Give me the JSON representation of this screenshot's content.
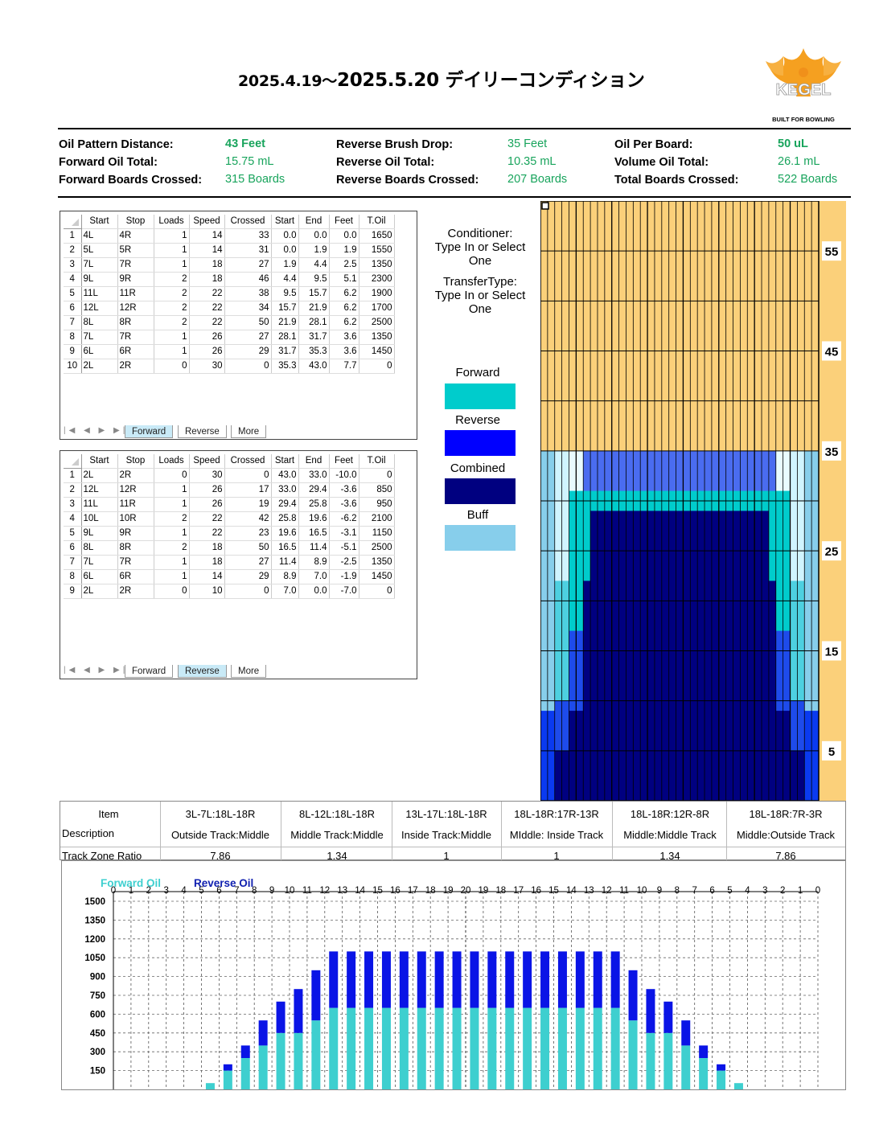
{
  "title": {
    "start": "2025.4.19",
    "sep": "～",
    "rest": "2025.5.20 デイリーコンディション"
  },
  "logo": {
    "text": "KEGEL",
    "tagline": "BUILT FOR BOWLING"
  },
  "info": {
    "col1": [
      {
        "label": "Oil Pattern Distance:",
        "value": "43 Feet",
        "bold": true
      },
      {
        "label": "Forward Oil Total:",
        "value": "15.75 mL",
        "bold": false
      },
      {
        "label": "Forward Boards Crossed:",
        "value": "315 Boards",
        "bold": false
      }
    ],
    "col2": [
      {
        "label": "Reverse Brush Drop:",
        "value": "35 Feet",
        "bold": false
      },
      {
        "label": "Reverse Oil Total:",
        "value": "10.35 mL",
        "bold": false
      },
      {
        "label": "Reverse Boards Crossed:",
        "value": "207 Boards",
        "bold": false
      }
    ],
    "col3": [
      {
        "label": "Oil Per Board:",
        "value": "50 uL",
        "bold": true
      },
      {
        "label": "Volume Oil Total:",
        "value": "26.1 mL",
        "bold": false
      },
      {
        "label": "Total Boards Crossed:",
        "value": "522 Boards",
        "bold": false
      }
    ]
  },
  "headers": [
    "Start",
    "Stop",
    "Loads",
    "Speed",
    "Crossed",
    "Start",
    "End",
    "Feet",
    "T.Oil"
  ],
  "forward": [
    [
      "1",
      "4L",
      "4R",
      "1",
      "14",
      "33",
      "0.0",
      "0.0",
      "0.0",
      "1650"
    ],
    [
      "2",
      "5L",
      "5R",
      "1",
      "14",
      "31",
      "0.0",
      "1.9",
      "1.9",
      "1550"
    ],
    [
      "3",
      "7L",
      "7R",
      "1",
      "18",
      "27",
      "1.9",
      "4.4",
      "2.5",
      "1350"
    ],
    [
      "4",
      "9L",
      "9R",
      "2",
      "18",
      "46",
      "4.4",
      "9.5",
      "5.1",
      "2300"
    ],
    [
      "5",
      "11L",
      "11R",
      "2",
      "22",
      "38",
      "9.5",
      "15.7",
      "6.2",
      "1900"
    ],
    [
      "6",
      "12L",
      "12R",
      "2",
      "22",
      "34",
      "15.7",
      "21.9",
      "6.2",
      "1700"
    ],
    [
      "7",
      "8L",
      "8R",
      "2",
      "22",
      "50",
      "21.9",
      "28.1",
      "6.2",
      "2500"
    ],
    [
      "8",
      "7L",
      "7R",
      "1",
      "26",
      "27",
      "28.1",
      "31.7",
      "3.6",
      "1350"
    ],
    [
      "9",
      "6L",
      "6R",
      "1",
      "26",
      "29",
      "31.7",
      "35.3",
      "3.6",
      "1450"
    ],
    [
      "10",
      "2L",
      "2R",
      "0",
      "30",
      "0",
      "35.3",
      "43.0",
      "7.7",
      "0"
    ]
  ],
  "reverse": [
    [
      "1",
      "2L",
      "2R",
      "0",
      "30",
      "0",
      "43.0",
      "33.0",
      "-10.0",
      "0"
    ],
    [
      "2",
      "12L",
      "12R",
      "1",
      "26",
      "17",
      "33.0",
      "29.4",
      "-3.6",
      "850"
    ],
    [
      "3",
      "11L",
      "11R",
      "1",
      "26",
      "19",
      "29.4",
      "25.8",
      "-3.6",
      "950"
    ],
    [
      "4",
      "10L",
      "10R",
      "2",
      "22",
      "42",
      "25.8",
      "19.6",
      "-6.2",
      "2100"
    ],
    [
      "5",
      "9L",
      "9R",
      "1",
      "22",
      "23",
      "19.6",
      "16.5",
      "-3.1",
      "1150"
    ],
    [
      "6",
      "8L",
      "8R",
      "2",
      "18",
      "50",
      "16.5",
      "11.4",
      "-5.1",
      "2500"
    ],
    [
      "7",
      "7L",
      "7R",
      "1",
      "18",
      "27",
      "11.4",
      "8.9",
      "-2.5",
      "1350"
    ],
    [
      "8",
      "6L",
      "6R",
      "1",
      "14",
      "29",
      "8.9",
      "7.0",
      "-1.9",
      "1450"
    ],
    [
      "9",
      "2L",
      "2R",
      "0",
      "10",
      "0",
      "7.0",
      "0.0",
      "-7.0",
      "0"
    ]
  ],
  "tabs": [
    "Forward",
    "Reverse",
    "More"
  ],
  "conditioner": {
    "line1": "Conditioner:",
    "line2": "Type In or Select",
    "line3": "One"
  },
  "transfer": {
    "line1": "TransferType:",
    "line2": "Type In or Select",
    "line3": "One"
  },
  "legend": [
    {
      "label": "Forward",
      "color": "#00CCCC"
    },
    {
      "label": "Reverse",
      "color": "#0000FF"
    },
    {
      "label": "Combined",
      "color": "#000080"
    },
    {
      "label": "Buff",
      "color": "#87CEEB"
    }
  ],
  "lane_markers": [
    "55",
    "45",
    "35",
    "25",
    "15",
    "5"
  ],
  "zones": {
    "item_label": "Item",
    "desc_label": "Description",
    "ratio_label": "Track Zone Ratio",
    "cols": [
      {
        "item": "3L-7L:18L-18R",
        "desc": "Outside Track:Middle",
        "ratio": "7.86"
      },
      {
        "item": "8L-12L:18L-18R",
        "desc": "Middle Track:Middle",
        "ratio": "1.34"
      },
      {
        "item": "13L-17L:18L-18R",
        "desc": "Inside Track:Middle",
        "ratio": "1"
      },
      {
        "item": "18L-18R:17R-13R",
        "desc": "MIddle: Inside Track",
        "ratio": "1"
      },
      {
        "item": "18L-18R:12R-8R",
        "desc": "Middle:Middle Track",
        "ratio": "1.34"
      },
      {
        "item": "18L-18R:7R-3R",
        "desc": "Middle:Outside Track",
        "ratio": "7.86"
      }
    ]
  },
  "chart_data": {
    "type": "bar",
    "legend": [
      "Forward Oil",
      "Reverse Oil"
    ],
    "colors": {
      "forward": "#3ECFCF",
      "reverse": "#0A14E6"
    },
    "categories": [
      "0",
      "1",
      "2",
      "3",
      "4",
      "5",
      "6",
      "7",
      "8",
      "9",
      "10",
      "11",
      "12",
      "13",
      "14",
      "15",
      "16",
      "17",
      "18",
      "19",
      "20",
      "19",
      "18",
      "17",
      "16",
      "15",
      "14",
      "13",
      "12",
      "11",
      "10",
      "9",
      "8",
      "7",
      "6",
      "5",
      "4",
      "3",
      "2",
      "1",
      "0"
    ],
    "series": [
      {
        "name": "Forward Oil",
        "values": [
          0,
          0,
          0,
          0,
          0,
          50,
          150,
          250,
          350,
          450,
          450,
          550,
          650,
          650,
          650,
          650,
          650,
          650,
          650,
          650,
          650,
          650,
          650,
          650,
          650,
          650,
          650,
          650,
          650,
          550,
          450,
          450,
          350,
          250,
          150,
          50,
          0,
          0,
          0,
          0,
          0
        ]
      },
      {
        "name": "Reverse Oil",
        "values": [
          0,
          0,
          0,
          0,
          0,
          0,
          50,
          100,
          200,
          250,
          350,
          400,
          450,
          450,
          450,
          450,
          450,
          450,
          450,
          450,
          450,
          450,
          450,
          450,
          450,
          450,
          450,
          450,
          450,
          400,
          350,
          250,
          200,
          100,
          50,
          0,
          0,
          0,
          0,
          0,
          0
        ]
      }
    ],
    "yticks": [
      "1500",
      "1350",
      "1200",
      "1050",
      "900",
      "750",
      "600",
      "450",
      "300",
      "150"
    ],
    "ylim": [
      0,
      1500
    ]
  }
}
